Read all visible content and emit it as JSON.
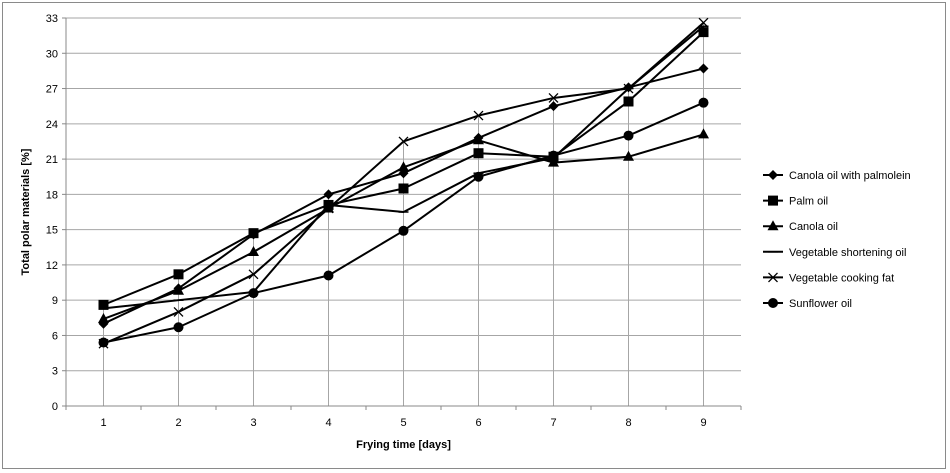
{
  "chart_data": {
    "type": "line",
    "xlabel": "Frying time [days]",
    "ylabel": "Total polar materials [%]",
    "x": [
      1,
      2,
      3,
      4,
      5,
      6,
      7,
      8,
      9
    ],
    "ylim": [
      0,
      33
    ],
    "yticks": [
      0,
      3,
      6,
      9,
      12,
      15,
      18,
      21,
      24,
      27,
      30,
      33
    ],
    "grid": "horizontal",
    "legend_position": "right",
    "series": [
      {
        "name": "Canola oil with palmolein",
        "marker": "diamond",
        "values": [
          7.0,
          10.0,
          14.6,
          18.0,
          19.8,
          22.8,
          25.5,
          27.1,
          28.7
        ]
      },
      {
        "name": "Palm oil",
        "marker": "square",
        "values": [
          8.6,
          11.2,
          14.7,
          17.1,
          18.5,
          21.5,
          21.2,
          25.9,
          31.8
        ]
      },
      {
        "name": "Canola oil",
        "marker": "triangle",
        "values": [
          7.4,
          9.8,
          13.1,
          16.8,
          20.3,
          22.6,
          20.7,
          21.2,
          23.1
        ]
      },
      {
        "name": "Vegetable shortening oil",
        "marker": "line",
        "values": [
          8.3,
          9.0,
          9.7,
          17.1,
          16.5,
          19.8,
          21.1,
          27.0,
          32.3
        ]
      },
      {
        "name": "Vegetable cooking fat",
        "marker": "x",
        "values": [
          5.3,
          8.0,
          11.2,
          16.8,
          22.5,
          24.7,
          26.2,
          27.0,
          32.6
        ]
      },
      {
        "name": "Sunflower oil",
        "marker": "circle",
        "values": [
          5.4,
          6.7,
          9.6,
          11.1,
          14.9,
          19.5,
          21.3,
          23.0,
          25.8
        ]
      }
    ]
  }
}
